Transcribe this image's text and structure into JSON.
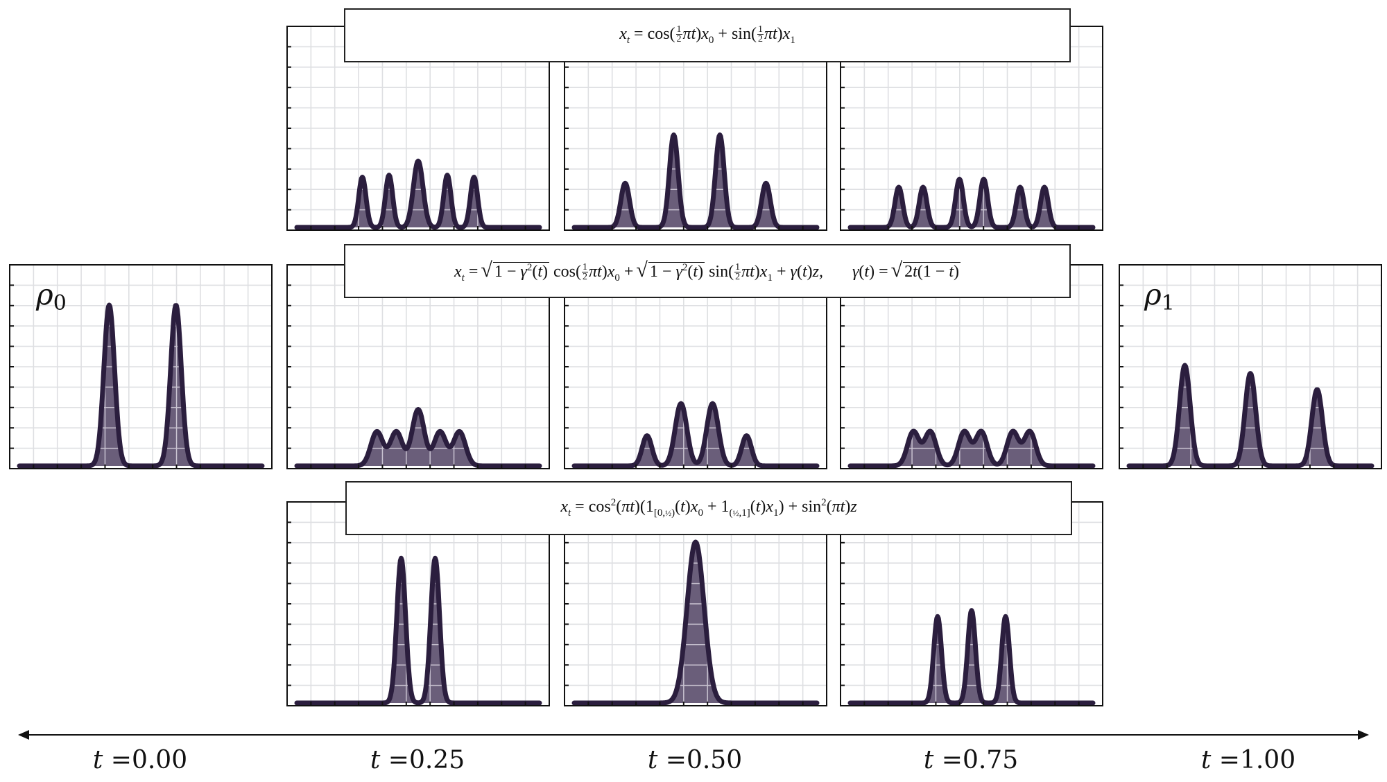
{
  "equations": {
    "top": "x_t = cos(½πt)x₀ + sin(½πt)x₁",
    "middle": "x_t = √(1 − γ²(t)) cos(½πt)x₀ + √(1 − γ²(t)) sin(½πt)x₁ + γ(t)z,   γ(t) = √(2t(1 − t))",
    "bottom": "x_t = cos²(πt)(1_[0,½)(t)x₀ + 1_(½,1](t)x₁) + sin²(πt)z"
  },
  "labels": {
    "rho0": "ρ",
    "rho0_sub": "0",
    "rho1": "ρ",
    "rho1_sub": "1"
  },
  "timeline": {
    "ticks": [
      {
        "t": "t",
        "eq": "=0.00"
      },
      {
        "t": "t",
        "eq": "=0.25"
      },
      {
        "t": "t",
        "eq": "=0.50"
      },
      {
        "t": "t",
        "eq": "=0.75"
      },
      {
        "t": "t",
        "eq": "=1.00"
      }
    ]
  },
  "colors": {
    "fill": "#6a5e7a",
    "stroke": "#2b1e3e",
    "grid": "#dedfe2",
    "inner_grid": "#c9c3d1"
  },
  "chart_data": [
    {
      "id": "rho0",
      "type": "area",
      "xlim": [
        0,
        1
      ],
      "ylim": [
        0,
        1
      ],
      "grid": true,
      "peaks": [
        {
          "x": 0.37,
          "height": 0.8,
          "width": 0.022
        },
        {
          "x": 0.645,
          "height": 0.8,
          "width": 0.022
        }
      ]
    },
    {
      "id": "rho1",
      "type": "area",
      "xlim": [
        0,
        1
      ],
      "ylim": [
        0,
        1
      ],
      "grid": true,
      "peaks": [
        {
          "x": 0.23,
          "height": 0.5,
          "width": 0.022
        },
        {
          "x": 0.5,
          "height": 0.46,
          "width": 0.022
        },
        {
          "x": 0.775,
          "height": 0.38,
          "width": 0.022
        }
      ]
    },
    {
      "id": "top-t025",
      "type": "area",
      "xlim": [
        0,
        1
      ],
      "ylim": [
        0,
        1
      ],
      "grid": true,
      "peaks": [
        {
          "x": 0.27,
          "height": 0.25,
          "width": 0.015
        },
        {
          "x": 0.38,
          "height": 0.26,
          "width": 0.015
        },
        {
          "x": 0.5,
          "height": 0.33,
          "width": 0.02
        },
        {
          "x": 0.62,
          "height": 0.26,
          "width": 0.015
        },
        {
          "x": 0.73,
          "height": 0.25,
          "width": 0.015
        }
      ]
    },
    {
      "id": "top-t050",
      "type": "area",
      "xlim": [
        0,
        1
      ],
      "ylim": [
        0,
        1
      ],
      "grid": true,
      "peaks": [
        {
          "x": 0.21,
          "height": 0.22,
          "width": 0.018
        },
        {
          "x": 0.41,
          "height": 0.46,
          "width": 0.018
        },
        {
          "x": 0.6,
          "height": 0.46,
          "width": 0.018
        },
        {
          "x": 0.79,
          "height": 0.22,
          "width": 0.018
        }
      ]
    },
    {
      "id": "top-t075",
      "type": "area",
      "xlim": [
        0,
        1
      ],
      "ylim": [
        0,
        1
      ],
      "grid": true,
      "peaks": [
        {
          "x": 0.2,
          "height": 0.2,
          "width": 0.016
        },
        {
          "x": 0.3,
          "height": 0.2,
          "width": 0.016
        },
        {
          "x": 0.45,
          "height": 0.24,
          "width": 0.016
        },
        {
          "x": 0.55,
          "height": 0.24,
          "width": 0.016
        },
        {
          "x": 0.7,
          "height": 0.2,
          "width": 0.016
        },
        {
          "x": 0.8,
          "height": 0.2,
          "width": 0.016
        }
      ]
    },
    {
      "id": "mid-t025",
      "type": "area",
      "xlim": [
        0,
        1
      ],
      "ylim": [
        0,
        1
      ],
      "grid": true,
      "peaks": [
        {
          "x": 0.33,
          "height": 0.17,
          "width": 0.025
        },
        {
          "x": 0.41,
          "height": 0.17,
          "width": 0.025
        },
        {
          "x": 0.5,
          "height": 0.28,
          "width": 0.025
        },
        {
          "x": 0.59,
          "height": 0.17,
          "width": 0.025
        },
        {
          "x": 0.67,
          "height": 0.17,
          "width": 0.025
        }
      ]
    },
    {
      "id": "mid-t050",
      "type": "area",
      "xlim": [
        0,
        1
      ],
      "ylim": [
        0,
        1
      ],
      "grid": true,
      "peaks": [
        {
          "x": 0.3,
          "height": 0.15,
          "width": 0.02
        },
        {
          "x": 0.44,
          "height": 0.31,
          "width": 0.024
        },
        {
          "x": 0.57,
          "height": 0.31,
          "width": 0.024
        },
        {
          "x": 0.71,
          "height": 0.15,
          "width": 0.02
        }
      ]
    },
    {
      "id": "mid-t075",
      "type": "area",
      "xlim": [
        0,
        1
      ],
      "ylim": [
        0,
        1
      ],
      "grid": true,
      "peaks": [
        {
          "x": 0.26,
          "height": 0.17,
          "width": 0.024
        },
        {
          "x": 0.33,
          "height": 0.17,
          "width": 0.024
        },
        {
          "x": 0.47,
          "height": 0.17,
          "width": 0.024
        },
        {
          "x": 0.54,
          "height": 0.17,
          "width": 0.024
        },
        {
          "x": 0.67,
          "height": 0.17,
          "width": 0.024
        },
        {
          "x": 0.74,
          "height": 0.17,
          "width": 0.024
        }
      ]
    },
    {
      "id": "bot-t025",
      "type": "area",
      "xlim": [
        0,
        1
      ],
      "ylim": [
        0,
        1
      ],
      "grid": true,
      "peaks": [
        {
          "x": 0.43,
          "height": 0.72,
          "width": 0.018
        },
        {
          "x": 0.57,
          "height": 0.72,
          "width": 0.018
        }
      ]
    },
    {
      "id": "bot-t050",
      "type": "area",
      "xlim": [
        0,
        1
      ],
      "ylim": [
        0,
        1
      ],
      "grid": true,
      "peaks": [
        {
          "x": 0.5,
          "height": 0.8,
          "width": 0.035
        }
      ]
    },
    {
      "id": "bot-t075",
      "type": "area",
      "xlim": [
        0,
        1
      ],
      "ylim": [
        0,
        1
      ],
      "grid": true,
      "peaks": [
        {
          "x": 0.36,
          "height": 0.43,
          "width": 0.016
        },
        {
          "x": 0.5,
          "height": 0.46,
          "width": 0.016
        },
        {
          "x": 0.64,
          "height": 0.43,
          "width": 0.016
        }
      ]
    }
  ]
}
